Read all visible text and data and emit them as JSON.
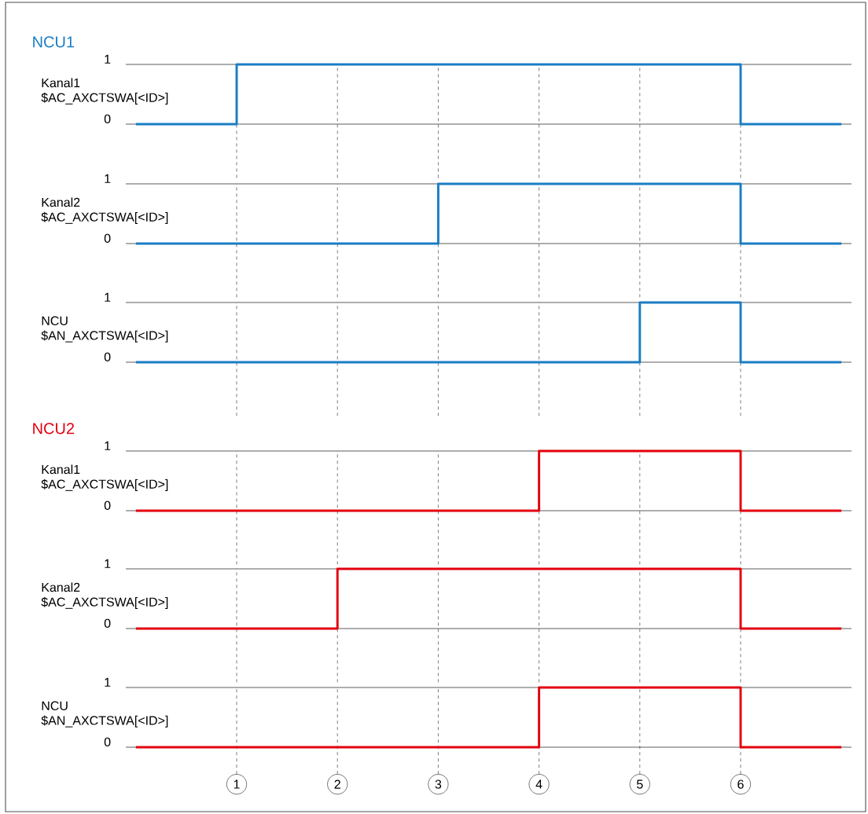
{
  "chart_data": [
    {
      "type": "step",
      "title": "NCU1",
      "ylabel": "Kanal1 $AC_AXCTSWA[<ID>]",
      "categories": [
        null,
        "1",
        "2",
        "3",
        "4",
        "5",
        "6",
        null
      ],
      "values": [
        0,
        1,
        1,
        1,
        1,
        1,
        0,
        0
      ],
      "color": "#1a7dc4",
      "ylim": [
        -0.9,
        1
      ],
      "yticks": [
        0,
        1
      ],
      "grid": true,
      "tick_labels": "y"
    },
    {
      "type": "step",
      "ylabel": "Kanal2 $AC_AXCTSWA[<ID>]",
      "categories": [
        null,
        "1",
        "2",
        "3",
        "4",
        "5",
        "6",
        null
      ],
      "values": [
        0,
        0,
        0,
        1,
        1,
        1,
        0,
        0
      ],
      "color": "#1a7dc4",
      "ylim": [
        -0.9,
        1
      ],
      "yticks": [
        0,
        1
      ],
      "grid": true,
      "tick_labels": "y"
    },
    {
      "type": "step",
      "ylabel": "NCU $AN_AXCTSWA[<ID>]",
      "categories": [
        null,
        "1",
        "2",
        "3",
        "4",
        "5",
        "6",
        null
      ],
      "values": [
        0,
        0,
        0,
        0,
        0,
        1,
        0,
        0
      ],
      "color": "#1a7dc4",
      "ylim": [
        -0.9,
        1
      ],
      "yticks": [
        0,
        1
      ],
      "grid": true,
      "tick_labels": "y"
    },
    {
      "type": "step",
      "title": "NCU2",
      "ylabel": "Kanal1 $AC_AXCTSWA[<ID>]",
      "categories": [
        null,
        "1",
        "2",
        "3",
        "4",
        "5",
        "6",
        null
      ],
      "values": [
        0,
        0,
        0,
        0,
        1,
        1,
        0,
        0
      ],
      "color": "#e2000f",
      "ylim": [
        -0.9,
        1
      ],
      "yticks": [
        0,
        1
      ],
      "grid": true,
      "tick_labels": "y"
    },
    {
      "type": "step",
      "ylabel": "Kanal2 $AC_AXCTSWA[<ID>]",
      "categories": [
        null,
        "1",
        "2",
        "3",
        "4",
        "5",
        "6",
        null
      ],
      "values": [
        0,
        0,
        1,
        1,
        1,
        1,
        0,
        0
      ],
      "color": "#e2000f",
      "ylim": [
        -0.9,
        1
      ],
      "yticks": [
        0,
        1
      ],
      "grid": true,
      "tick_labels": "y"
    },
    {
      "type": "step",
      "ylabel": "NCU $AN_AXCTSWA[<ID>]",
      "categories": [
        null,
        "1",
        "2",
        "3",
        "4",
        "5",
        "6",
        null
      ],
      "values": [
        0,
        0,
        0,
        0,
        1,
        1,
        0,
        0
      ],
      "color": "#e2000f",
      "ylim": [
        -0.45,
        1
      ],
      "yticks": [
        0,
        1
      ],
      "grid": true
    }
  ]
}
